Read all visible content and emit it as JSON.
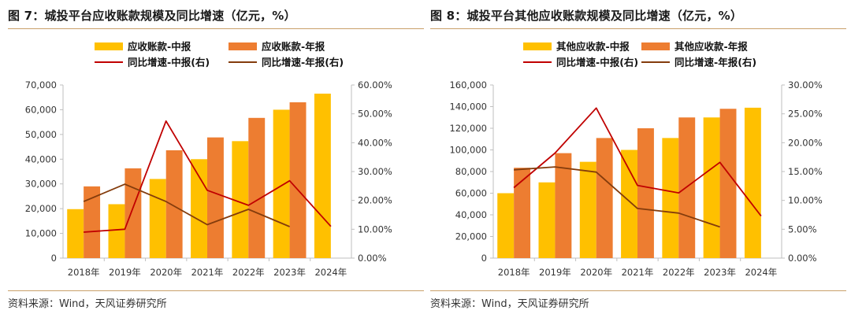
{
  "colors": {
    "mid_bar": "#ffc000",
    "annual_bar": "#ed7d31",
    "mid_line": "#c00000",
    "annual_line": "#843c0c",
    "axis": "#bfbfbf",
    "rule": "#c9a06a"
  },
  "panels": [
    {
      "title": "图 7：城投平台应收账款规模及同比增速（亿元，%）",
      "source": "资料来源：Wind，天风证券研究所",
      "chart_data": {
        "type": "bar",
        "categories": [
          "2018年",
          "2019年",
          "2020年",
          "2021年",
          "2022年",
          "2023年",
          "2024年"
        ],
        "bar_series": [
          {
            "name": "应收账款-中报",
            "values": [
              19800,
              21800,
              32000,
              40000,
              47300,
              60000,
              66500
            ]
          },
          {
            "name": "应收账款-年报",
            "values": [
              29000,
              36300,
              43600,
              48800,
              56700,
              63000,
              null
            ]
          }
        ],
        "line_series": [
          {
            "name": "同比增速-中报(右)",
            "values": [
              9.0,
              10.0,
              47.5,
              23.5,
              18.3,
              26.8,
              11.0
            ]
          },
          {
            "name": "同比增速-年报(右)",
            "values": [
              19.6,
              25.6,
              19.6,
              11.6,
              16.9,
              10.9,
              null
            ]
          }
        ],
        "y_left": {
          "min": 0,
          "max": 70000,
          "step": 10000,
          "ticks": [
            "0",
            "10,000",
            "20,000",
            "30,000",
            "40,000",
            "50,000",
            "60,000",
            "70,000"
          ]
        },
        "y_right": {
          "min": 0,
          "max": 60,
          "step": 10,
          "ticks": [
            "0.00%",
            "10.00%",
            "20.00%",
            "30.00%",
            "40.00%",
            "50.00%",
            "60.00%"
          ]
        },
        "grid": false,
        "legend_position": "top"
      }
    },
    {
      "title": "图 8：城投平台其他应收账款规模及同比增速（亿元，%）",
      "source": "资料来源：Wind，天风证券研究所",
      "chart_data": {
        "type": "bar",
        "categories": [
          "2018年",
          "2019年",
          "2020年",
          "2021年",
          "2022年",
          "2023年",
          "2024年"
        ],
        "bar_series": [
          {
            "name": "其他应收款-中报",
            "values": [
              60000,
              70000,
              89000,
              100000,
              111000,
              130000,
              139000
            ]
          },
          {
            "name": "其他应收款-年报",
            "values": [
              83500,
              97000,
              111000,
              120000,
              130000,
              138000,
              null
            ]
          }
        ],
        "line_series": [
          {
            "name": "同比增速-中报(右)",
            "values": [
              12.2,
              18.2,
              26.0,
              12.6,
              11.3,
              16.6,
              7.3
            ]
          },
          {
            "name": "同比增速-年报(右)",
            "values": [
              15.3,
              15.8,
              14.9,
              8.6,
              7.8,
              5.4,
              null
            ]
          }
        ],
        "y_left": {
          "min": 0,
          "max": 160000,
          "step": 20000,
          "ticks": [
            "0",
            "20,000",
            "40,000",
            "60,000",
            "80,000",
            "100,000",
            "120,000",
            "140,000",
            "160,000"
          ]
        },
        "y_right": {
          "min": 0,
          "max": 30,
          "step": 5,
          "ticks": [
            "0.00%",
            "5.00%",
            "10.00%",
            "15.00%",
            "20.00%",
            "25.00%",
            "30.00%"
          ]
        },
        "grid": false,
        "legend_position": "top"
      }
    }
  ]
}
